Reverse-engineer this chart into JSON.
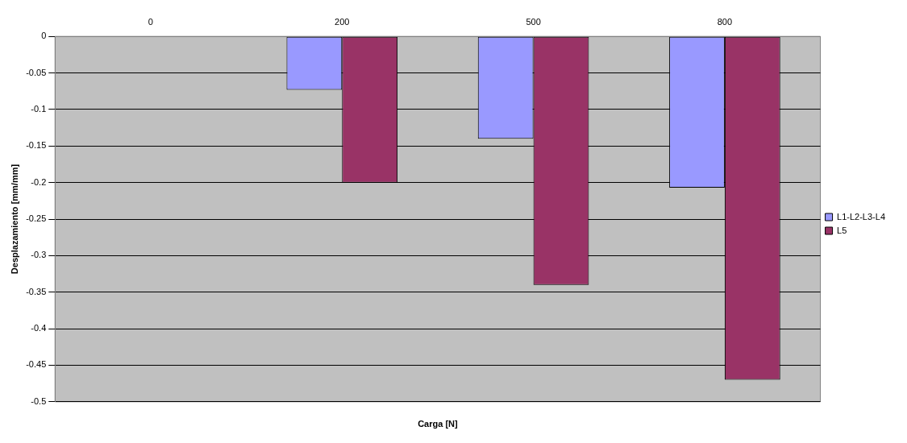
{
  "chart_data": {
    "type": "bar",
    "xlabel": "Carga [N]",
    "ylabel": "Desplazamiento [mm/mm]",
    "categories": [
      "0",
      "200",
      "500",
      "800"
    ],
    "series": [
      {
        "name": "L1-L2-L3-L4",
        "color": "#9999ff",
        "values": [
          0,
          -0.073,
          -0.14,
          -0.207
        ]
      },
      {
        "name": "L5",
        "color": "#993366",
        "values": [
          0,
          -0.2,
          -0.34,
          -0.47
        ]
      }
    ],
    "ylim": [
      -0.5,
      0
    ],
    "yticks": [
      0,
      -0.05,
      -0.1,
      -0.15,
      -0.2,
      -0.25,
      -0.3,
      -0.35,
      -0.4,
      -0.45,
      -0.5
    ],
    "grid": "y",
    "legend": "right"
  }
}
